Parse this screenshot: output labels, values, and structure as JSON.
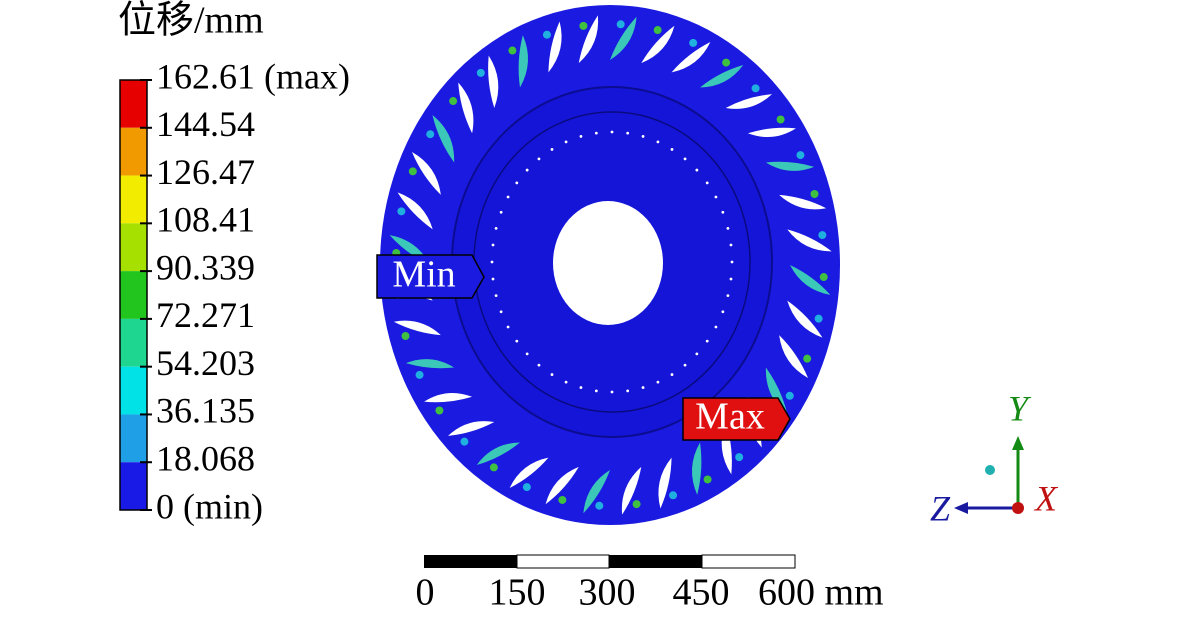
{
  "legend": {
    "title": "位移/mm",
    "labels": [
      "162.61 (max)",
      "144.54",
      "126.47",
      "108.41",
      "90.339",
      "72.271",
      "54.203",
      "36.135",
      "18.068",
      "0 (min)"
    ],
    "colors": [
      "#e60000",
      "#f09a00",
      "#f2ec00",
      "#a6e000",
      "#22c41e",
      "#1fd690",
      "#00e2e6",
      "#1f9fe6",
      "#1a1ae6"
    ]
  },
  "markers": {
    "min": "Min",
    "max": "Max"
  },
  "scale_bar": {
    "labels": [
      "0",
      "150",
      "300",
      "450",
      "600 mm"
    ]
  },
  "triad": {
    "y": "Y",
    "z": "Z",
    "x": "X"
  }
}
